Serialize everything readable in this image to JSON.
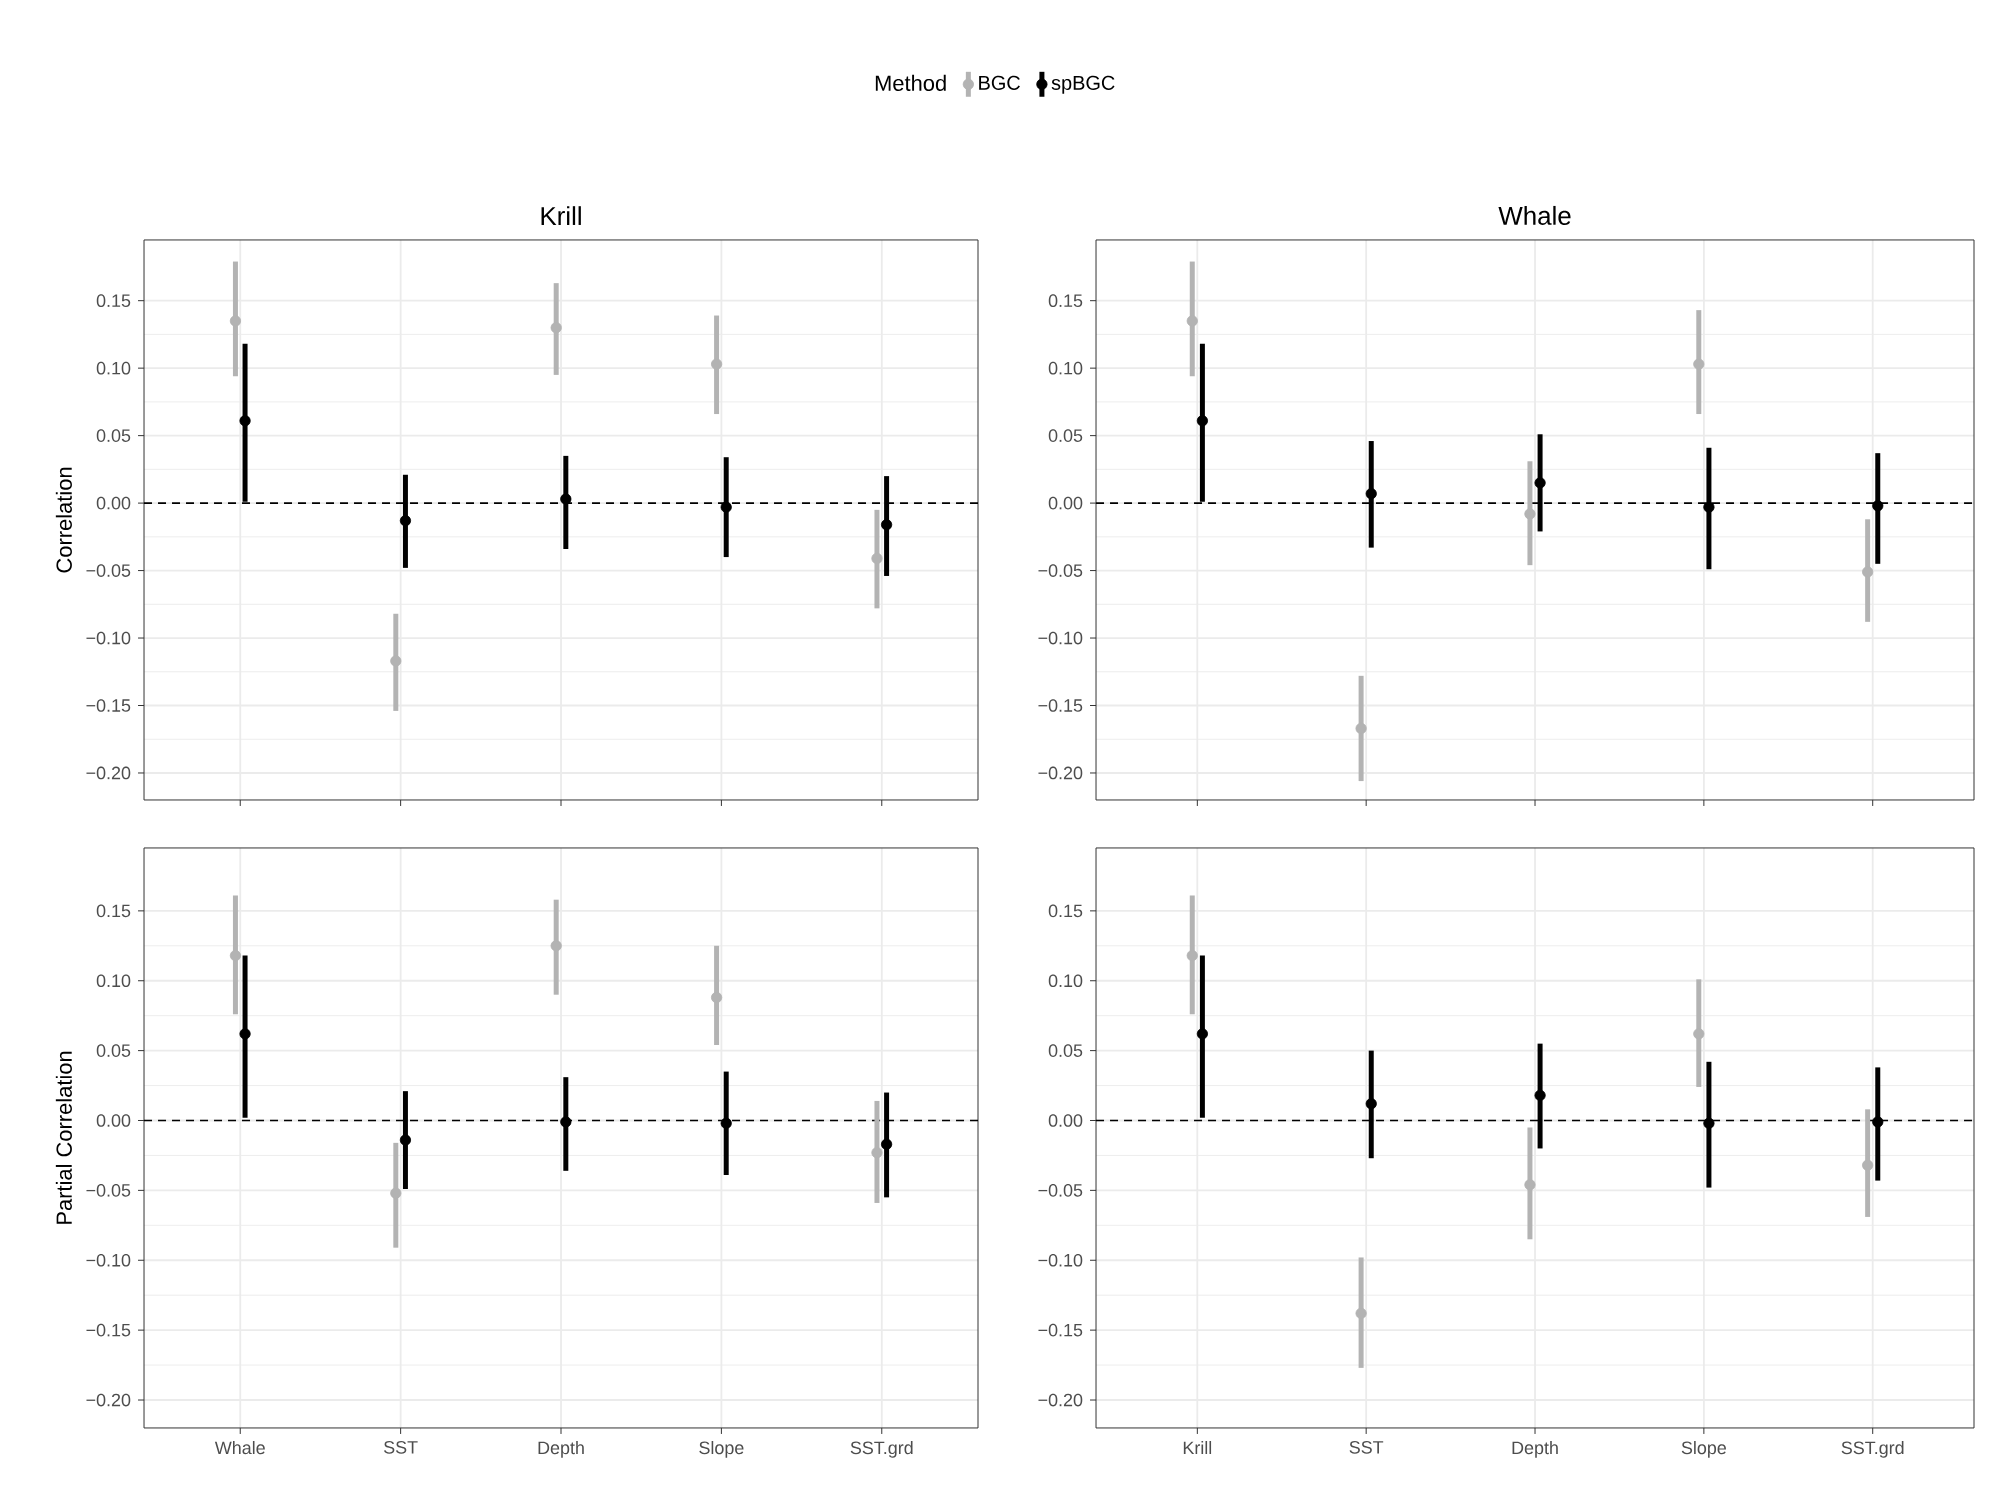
{
  "chart_data": [
    {
      "type": "scatter",
      "title": "Krill",
      "ylabel": "Correlation",
      "legend_title": "Method",
      "legend": "top",
      "grid": true,
      "marker": "circle",
      "tick_labels": "y",
      "categories": [
        null,
        null,
        null,
        null,
        null
      ],
      "ylim": [
        -0.22,
        0.195
      ],
      "yticks": [
        {
          "value": -0.2,
          "label": "−0.20"
        },
        {
          "value": -0.15,
          "label": "−0.15"
        },
        {
          "value": -0.1,
          "label": "−0.10"
        },
        {
          "value": -0.05,
          "label": "−0.05"
        },
        {
          "value": 0,
          "label": "0.00"
        },
        {
          "value": 0.05,
          "label": "0.05"
        },
        {
          "value": 0.1,
          "label": "0.10"
        },
        {
          "value": 0.15,
          "label": "0.15"
        }
      ],
      "ref_lines": [
        {
          "axis": "y",
          "value": 0,
          "color": "#000000",
          "line_style": "dashed"
        }
      ],
      "series": [
        {
          "name": "BGC",
          "color": "#b3b3b3",
          "values": [
            0.135,
            -0.117,
            0.13,
            0.103,
            -0.041
          ],
          "errors": [
            [
              0.094,
              0.179
            ],
            [
              -0.154,
              -0.082
            ],
            [
              0.095,
              0.163
            ],
            [
              0.066,
              0.139
            ],
            [
              -0.078,
              -0.005
            ]
          ]
        },
        {
          "name": "spBGC",
          "color": "#000000",
          "values": [
            0.061,
            -0.013,
            0.003,
            -0.003,
            -0.016
          ],
          "errors": [
            [
              0.001,
              0.118
            ],
            [
              -0.048,
              0.021
            ],
            [
              -0.034,
              0.035
            ],
            [
              -0.04,
              0.034
            ],
            [
              -0.054,
              0.02
            ]
          ]
        }
      ]
    },
    {
      "type": "scatter",
      "title": "Whale",
      "grid": true,
      "marker": "circle",
      "tick_labels": "y",
      "categories": [
        null,
        null,
        null,
        null,
        null
      ],
      "ylim": [
        -0.22,
        0.195
      ],
      "yticks": [
        {
          "value": -0.2,
          "label": "−0.20"
        },
        {
          "value": -0.15,
          "label": "−0.15"
        },
        {
          "value": -0.1,
          "label": "−0.10"
        },
        {
          "value": -0.05,
          "label": "−0.05"
        },
        {
          "value": 0,
          "label": "0.00"
        },
        {
          "value": 0.05,
          "label": "0.05"
        },
        {
          "value": 0.1,
          "label": "0.10"
        },
        {
          "value": 0.15,
          "label": "0.15"
        }
      ],
      "ref_lines": [
        {
          "axis": "y",
          "value": 0,
          "color": "#000000",
          "line_style": "dashed"
        }
      ],
      "series": [
        {
          "color": "#b3b3b3",
          "values": [
            0.135,
            -0.167,
            -0.008,
            0.103,
            -0.051
          ],
          "errors": [
            [
              0.094,
              0.179
            ],
            [
              -0.206,
              -0.128
            ],
            [
              -0.046,
              0.031
            ],
            [
              0.066,
              0.143
            ],
            [
              -0.088,
              -0.012
            ]
          ]
        },
        {
          "color": "#000000",
          "values": [
            0.061,
            0.007,
            0.015,
            -0.003,
            -0.002
          ],
          "errors": [
            [
              0.001,
              0.118
            ],
            [
              -0.033,
              0.046
            ],
            [
              -0.021,
              0.051
            ],
            [
              -0.049,
              0.041
            ],
            [
              -0.045,
              0.037
            ]
          ]
        }
      ]
    },
    {
      "type": "scatter",
      "ylabel": "Partial Correlation",
      "grid": true,
      "marker": "circle",
      "categories": [
        "Whale",
        "SST",
        "Depth",
        "Slope",
        "SST.grd"
      ],
      "ylim": [
        -0.22,
        0.195
      ],
      "yticks": [
        {
          "value": -0.2,
          "label": "−0.20"
        },
        {
          "value": -0.15,
          "label": "−0.15"
        },
        {
          "value": -0.1,
          "label": "−0.10"
        },
        {
          "value": -0.05,
          "label": "−0.05"
        },
        {
          "value": 0,
          "label": "0.00"
        },
        {
          "value": 0.05,
          "label": "0.05"
        },
        {
          "value": 0.1,
          "label": "0.10"
        },
        {
          "value": 0.15,
          "label": "0.15"
        }
      ],
      "ref_lines": [
        {
          "axis": "y",
          "value": 0,
          "color": "#000000",
          "line_style": "dashed"
        }
      ],
      "series": [
        {
          "color": "#b3b3b3",
          "values": [
            0.118,
            -0.052,
            0.125,
            0.088,
            -0.023
          ],
          "errors": [
            [
              0.076,
              0.161
            ],
            [
              -0.091,
              -0.016
            ],
            [
              0.09,
              0.158
            ],
            [
              0.054,
              0.125
            ],
            [
              -0.059,
              0.014
            ]
          ]
        },
        {
          "color": "#000000",
          "values": [
            0.062,
            -0.014,
            -0.001,
            -0.002,
            -0.017
          ],
          "errors": [
            [
              0.002,
              0.118
            ],
            [
              -0.049,
              0.021
            ],
            [
              -0.036,
              0.031
            ],
            [
              -0.039,
              0.035
            ],
            [
              -0.055,
              0.02
            ]
          ]
        }
      ]
    },
    {
      "type": "scatter",
      "grid": true,
      "marker": "circle",
      "categories": [
        "Krill",
        "SST",
        "Depth",
        "Slope",
        "SST.grd"
      ],
      "ylim": [
        -0.22,
        0.195
      ],
      "yticks": [
        {
          "value": -0.2,
          "label": "−0.20"
        },
        {
          "value": -0.15,
          "label": "−0.15"
        },
        {
          "value": -0.1,
          "label": "−0.10"
        },
        {
          "value": -0.05,
          "label": "−0.05"
        },
        {
          "value": 0,
          "label": "0.00"
        },
        {
          "value": 0.05,
          "label": "0.05"
        },
        {
          "value": 0.1,
          "label": "0.10"
        },
        {
          "value": 0.15,
          "label": "0.15"
        }
      ],
      "ref_lines": [
        {
          "axis": "y",
          "value": 0,
          "color": "#000000",
          "line_style": "dashed"
        }
      ],
      "series": [
        {
          "color": "#b3b3b3",
          "values": [
            0.118,
            -0.138,
            -0.046,
            0.062,
            -0.032
          ],
          "errors": [
            [
              0.076,
              0.161
            ],
            [
              -0.177,
              -0.098
            ],
            [
              -0.085,
              -0.005
            ],
            [
              0.024,
              0.101
            ],
            [
              -0.069,
              0.008
            ]
          ]
        },
        {
          "color": "#000000",
          "values": [
            0.062,
            0.012,
            0.018,
            -0.002,
            -0.001
          ],
          "errors": [
            [
              0.002,
              0.118
            ],
            [
              -0.027,
              0.05
            ],
            [
              -0.02,
              0.055
            ],
            [
              -0.048,
              0.042
            ],
            [
              -0.043,
              0.038
            ]
          ]
        }
      ]
    }
  ]
}
